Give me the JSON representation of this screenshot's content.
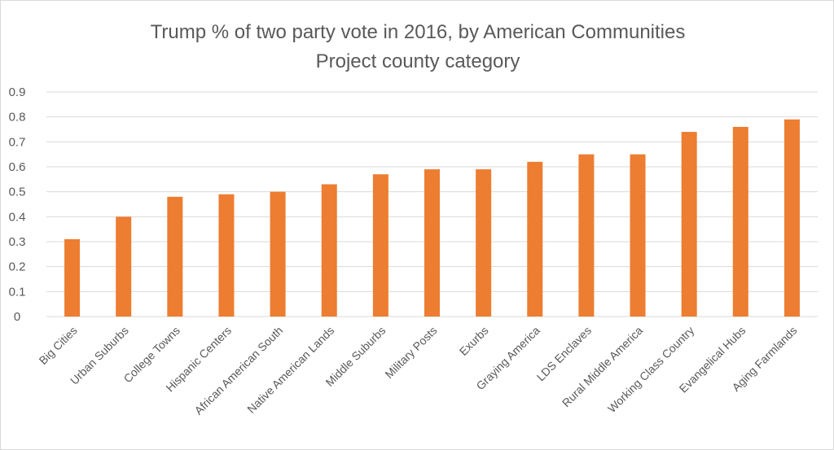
{
  "chart_data": {
    "type": "bar",
    "title_lines": [
      "Trump % of two party vote in 2016, by American Communities",
      "Project county category"
    ],
    "xlabel": "",
    "ylabel": "",
    "ylim": [
      0,
      0.9
    ],
    "yticks": [
      "0",
      "0.1",
      "0.2",
      "0.3",
      "0.4",
      "0.5",
      "0.6",
      "0.7",
      "0.8",
      "0.9"
    ],
    "grid": true,
    "bar_color": "#ED7D31",
    "grid_color": "#d9d9d9",
    "categories": [
      "Big Cities",
      "Urban Suburbs",
      "College Towns",
      "Hispanic Centers",
      "African American South",
      "Native American Lands",
      "Middle Suburbs",
      "Military Posts",
      "Exurbs",
      "Graying America",
      "LDS Enclaves",
      "Rural Middle America",
      "Working Class Country",
      "Evangelical Hubs",
      "Aging Farmlands"
    ],
    "values": [
      0.31,
      0.4,
      0.48,
      0.49,
      0.5,
      0.53,
      0.57,
      0.59,
      0.59,
      0.62,
      0.65,
      0.65,
      0.74,
      0.76,
      0.79
    ]
  }
}
